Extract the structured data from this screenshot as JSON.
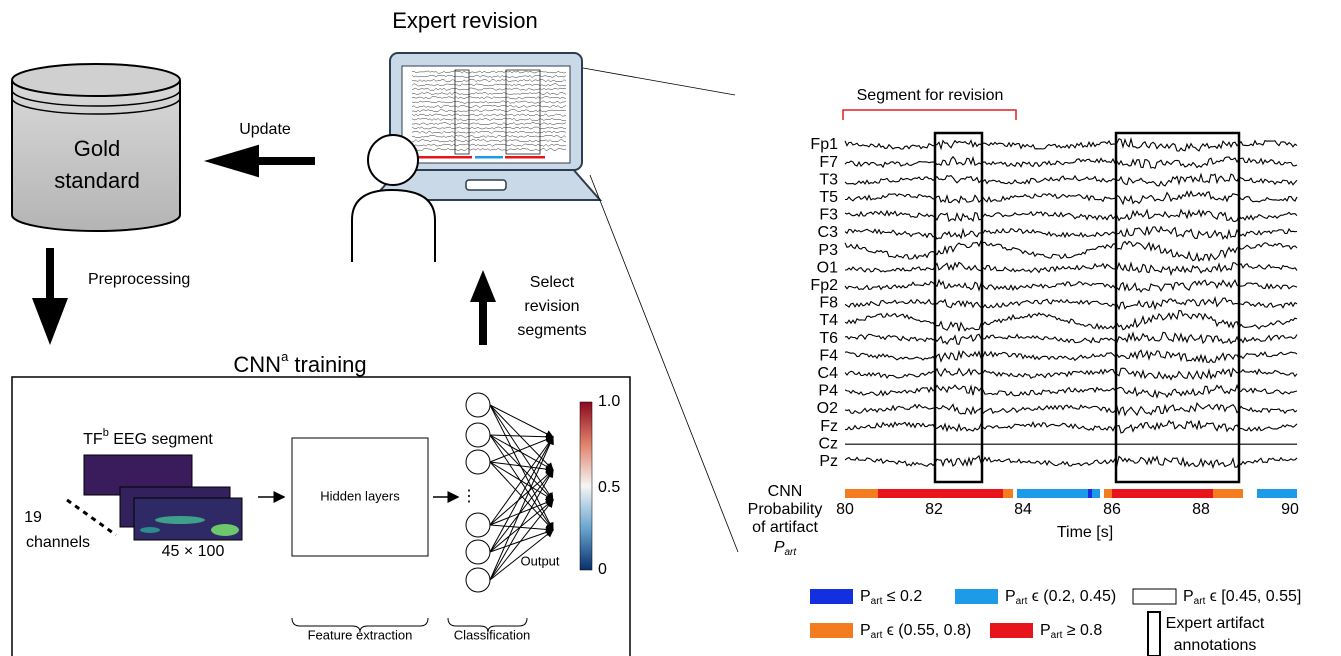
{
  "left": {
    "expert_title": "Expert revision",
    "update": "Update",
    "gold_standard": [
      "Gold",
      "standard"
    ],
    "preprocessing": "Preprocessing",
    "select": [
      "Select",
      "revision",
      "segments"
    ],
    "training_title": {
      "text": "CNN",
      "sup": "a",
      "rest": " training"
    },
    "segment_label": {
      "text": "TF",
      "sup": "b",
      "rest": " EEG segment"
    },
    "channels": [
      "19",
      "channels"
    ],
    "size": "45 × 100",
    "hidden": "Hidden layers",
    "output": "Output",
    "colorbar": [
      "1.0",
      "0.5",
      "0"
    ],
    "feature_extraction": "Feature extraction",
    "classification": "Classification"
  },
  "right": {
    "segment_for_revision": "Segment for revision",
    "channel_names": [
      "Fp1",
      "F7",
      "T3",
      "T5",
      "F3",
      "C3",
      "P3",
      "O1",
      "Fp2",
      "F8",
      "T4",
      "T6",
      "F4",
      "C4",
      "P4",
      "O2",
      "Fz",
      "Cz",
      "Pz"
    ],
    "probability_label": [
      "CNN",
      "Probability",
      "of artifact"
    ],
    "p_symbol": {
      "text": "P",
      "sub": "art"
    },
    "xlim": [
      80,
      90
    ],
    "xticks": [
      80,
      82,
      84,
      86,
      88,
      90
    ],
    "x_label": "Time [s]",
    "legend": [
      {
        "text": "P",
        "sub": "art",
        "rest": " ≤ 0.2"
      },
      {
        "text": "P",
        "sub": "art",
        "rest": " ϵ (0.2, 0.45)"
      },
      {
        "text": "P",
        "sub": "art",
        "rest": " ϵ [0.45, 0.55]"
      },
      {
        "text": "P",
        "sub": "art",
        "rest": " ϵ (0.55, 0.8)"
      },
      {
        "text": "P",
        "sub": "art",
        "rest": " ≥ 0.8"
      }
    ],
    "annotations": [
      "Expert artifact",
      "annotations"
    ]
  }
}
